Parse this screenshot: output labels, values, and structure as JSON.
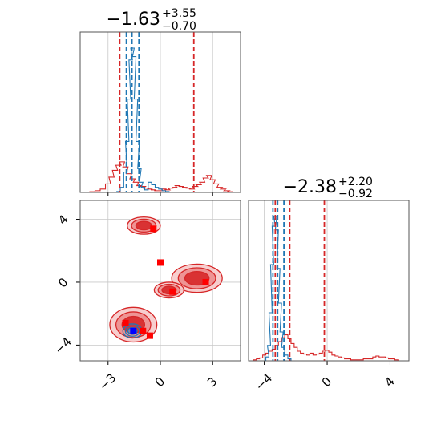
{
  "chart_data": {
    "type": "corner",
    "parameters": [
      "",
      ""
    ],
    "series": [
      {
        "name": "",
        "color": "#d62728"
      },
      {
        "name": "",
        "color": "#1f77b4"
      }
    ],
    "titles": [
      {
        "main": "−1.63",
        "sup": "+3.55",
        "sub": "−0.70"
      },
      {
        "main": "−2.38",
        "sup": "+2.20",
        "sub": "−0.92"
      }
    ],
    "panel_0_0": {
      "type": "histogram",
      "xlim": [
        -4.6,
        4.6
      ],
      "xticks": [
        -3,
        0,
        3
      ],
      "xtick_labels": [
        "−3",
        "0",
        "3"
      ],
      "quantile_lines": [
        {
          "series": 0,
          "values": [
            -2.33,
            -1.63,
            1.92
          ]
        },
        {
          "series": 1,
          "values": [
            -1.95,
            -1.63,
            -1.23
          ]
        }
      ],
      "series_0_hist": [
        [
          -4.2,
          0.002
        ],
        [
          -3.9,
          0.004
        ],
        [
          -3.6,
          0.01
        ],
        [
          -3.3,
          0.02
        ],
        [
          -3.0,
          0.05
        ],
        [
          -2.8,
          0.09
        ],
        [
          -2.6,
          0.13
        ],
        [
          -2.4,
          0.16
        ],
        [
          -2.2,
          0.18
        ],
        [
          -2.0,
          0.15
        ],
        [
          -1.8,
          0.11
        ],
        [
          -1.6,
          0.08
        ],
        [
          -1.4,
          0.06
        ],
        [
          -1.2,
          0.04
        ],
        [
          -1.0,
          0.035
        ],
        [
          -0.8,
          0.025
        ],
        [
          -0.6,
          0.02
        ],
        [
          -0.4,
          0.015
        ],
        [
          -0.2,
          0.01
        ],
        [
          0.0,
          0.01
        ],
        [
          0.2,
          0.02
        ],
        [
          0.4,
          0.015
        ],
        [
          0.6,
          0.025
        ],
        [
          0.8,
          0.03
        ],
        [
          1.0,
          0.04
        ],
        [
          1.2,
          0.035
        ],
        [
          1.4,
          0.03
        ],
        [
          1.6,
          0.025
        ],
        [
          1.8,
          0.02
        ],
        [
          2.0,
          0.035
        ],
        [
          2.2,
          0.045
        ],
        [
          2.4,
          0.06
        ],
        [
          2.6,
          0.085
        ],
        [
          2.8,
          0.1
        ],
        [
          3.0,
          0.075
        ],
        [
          3.2,
          0.05
        ],
        [
          3.4,
          0.03
        ],
        [
          3.6,
          0.02
        ],
        [
          3.8,
          0.01
        ],
        [
          4.0,
          0.004
        ],
        [
          4.2,
          0.002
        ]
      ],
      "series_1_hist": [
        [
          -2.6,
          0.0
        ],
        [
          -2.4,
          0.005
        ],
        [
          -2.2,
          0.03
        ],
        [
          -2.0,
          0.12
        ],
        [
          -1.9,
          0.3
        ],
        [
          -1.8,
          0.55
        ],
        [
          -1.7,
          0.78
        ],
        [
          -1.6,
          0.85
        ],
        [
          -1.5,
          0.8
        ],
        [
          -1.4,
          0.55
        ],
        [
          -1.3,
          0.3
        ],
        [
          -1.2,
          0.14
        ],
        [
          -1.1,
          0.06
        ],
        [
          -1.0,
          0.03
        ],
        [
          -0.8,
          0.015
        ],
        [
          -0.6,
          0.06
        ],
        [
          -0.4,
          0.045
        ],
        [
          -0.2,
          0.03
        ],
        [
          0.0,
          0.02
        ],
        [
          0.2,
          0.01
        ],
        [
          0.4,
          0.005
        ],
        [
          0.6,
          0.0
        ]
      ]
    },
    "panel_1_1": {
      "type": "histogram",
      "xlim": [
        -5.0,
        5.2
      ],
      "xticks": [
        -4,
        0,
        4
      ],
      "xtick_labels": [
        "−4",
        "0",
        "4"
      ],
      "quantile_lines": [
        {
          "series": 0,
          "values": [
            -3.3,
            -2.38,
            -0.18
          ]
        },
        {
          "series": 1,
          "values": [
            -3.45,
            -3.15,
            -2.75
          ]
        }
      ],
      "series_0_hist": [
        [
          -4.6,
          0.005
        ],
        [
          -4.4,
          0.01
        ],
        [
          -4.2,
          0.015
        ],
        [
          -4.0,
          0.03
        ],
        [
          -3.8,
          0.04
        ],
        [
          -3.6,
          0.05
        ],
        [
          -3.4,
          0.06
        ],
        [
          -3.2,
          0.08
        ],
        [
          -3.0,
          0.1
        ],
        [
          -2.8,
          0.12
        ],
        [
          -2.6,
          0.135
        ],
        [
          -2.4,
          0.115
        ],
        [
          -2.2,
          0.09
        ],
        [
          -2.0,
          0.07
        ],
        [
          -1.8,
          0.05
        ],
        [
          -1.6,
          0.04
        ],
        [
          -1.4,
          0.035
        ],
        [
          -1.2,
          0.03
        ],
        [
          -1.0,
          0.04
        ],
        [
          -0.8,
          0.03
        ],
        [
          -0.6,
          0.035
        ],
        [
          -0.4,
          0.04
        ],
        [
          -0.2,
          0.05
        ],
        [
          0.0,
          0.055
        ],
        [
          0.2,
          0.045
        ],
        [
          0.4,
          0.03
        ],
        [
          0.6,
          0.025
        ],
        [
          0.8,
          0.02
        ],
        [
          1.0,
          0.015
        ],
        [
          1.2,
          0.01
        ],
        [
          1.4,
          0.01
        ],
        [
          1.6,
          0.005
        ],
        [
          1.8,
          0.005
        ],
        [
          2.0,
          0.005
        ],
        [
          2.2,
          0.005
        ],
        [
          2.4,
          0.01
        ],
        [
          2.6,
          0.01
        ],
        [
          2.8,
          0.01
        ],
        [
          3.0,
          0.02
        ],
        [
          3.2,
          0.025
        ],
        [
          3.4,
          0.02
        ],
        [
          3.6,
          0.02
        ],
        [
          3.8,
          0.015
        ],
        [
          4.0,
          0.01
        ],
        [
          4.2,
          0.01
        ],
        [
          4.4,
          0.005
        ]
      ],
      "series_1_hist": [
        [
          -4.0,
          0.0
        ],
        [
          -3.8,
          0.02
        ],
        [
          -3.7,
          0.08
        ],
        [
          -3.6,
          0.25
        ],
        [
          -3.5,
          0.5
        ],
        [
          -3.4,
          0.7
        ],
        [
          -3.3,
          0.75
        ],
        [
          -3.2,
          0.68
        ],
        [
          -3.1,
          0.48
        ],
        [
          -3.0,
          0.3
        ],
        [
          -2.9,
          0.15
        ],
        [
          -2.8,
          0.07
        ],
        [
          -2.6,
          0.03
        ],
        [
          -2.4,
          0.01
        ],
        [
          -2.2,
          0.0
        ]
      ]
    },
    "panel_1_0": {
      "type": "2d-density",
      "xlim": [
        -4.6,
        4.6
      ],
      "ylim": [
        -5.0,
        5.2
      ],
      "xticks": [
        -3,
        0,
        3
      ],
      "xtick_labels": [
        "−3",
        "0",
        "3"
      ],
      "yticks": [
        -4,
        0,
        4
      ],
      "ytick_labels": [
        "−4",
        "0",
        "4"
      ],
      "grid": true,
      "series_0_blobs": [
        {
          "cx": -1.55,
          "cy": -2.7,
          "rx": 1.35,
          "ry": 1.1
        },
        {
          "cx": 2.1,
          "cy": 0.25,
          "rx": 1.45,
          "ry": 0.9
        },
        {
          "cx": 0.5,
          "cy": -0.5,
          "rx": 0.85,
          "ry": 0.5
        },
        {
          "cx": -0.95,
          "cy": 3.6,
          "rx": 0.95,
          "ry": 0.55
        }
      ],
      "series_0_points": [
        [
          -2.0,
          -2.6
        ],
        [
          -0.6,
          -3.4
        ],
        [
          2.6,
          0.0
        ],
        [
          0.7,
          -0.6
        ],
        [
          0.0,
          1.25
        ],
        [
          -0.4,
          3.4
        ],
        [
          -1.0,
          -3.1
        ]
      ],
      "series_1_blobs": [
        {
          "cx": -1.6,
          "cy": -3.1,
          "rx": 0.55,
          "ry": 0.45
        }
      ],
      "series_1_points": [
        [
          -1.55,
          -3.1
        ]
      ]
    }
  }
}
